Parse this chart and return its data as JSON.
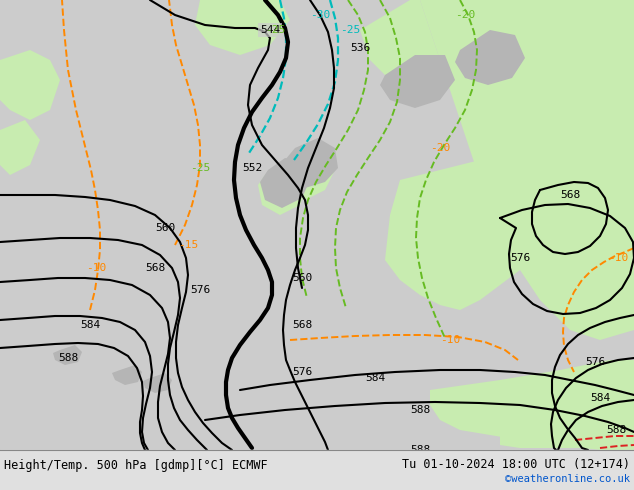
{
  "title_left": "Height/Temp. 500 hPa [gdmp][°C] ECMWF",
  "title_right": "Tu 01-10-2024 18:00 UTC (12+174)",
  "copyright": "©weatheronline.co.uk",
  "bg_color": "#cccccc",
  "land_green_color": "#c8ecb0",
  "land_gray_color": "#b0b0b0",
  "height_contour_color": "#000000",
  "temp_warm_color": "#ff8800",
  "temp_cyan_color": "#00bbbb",
  "temp_green_color": "#66bb22",
  "temp_red_color": "#dd2222",
  "bottom_bar_color": "#e0e0e0",
  "bottom_bar_height": 40
}
